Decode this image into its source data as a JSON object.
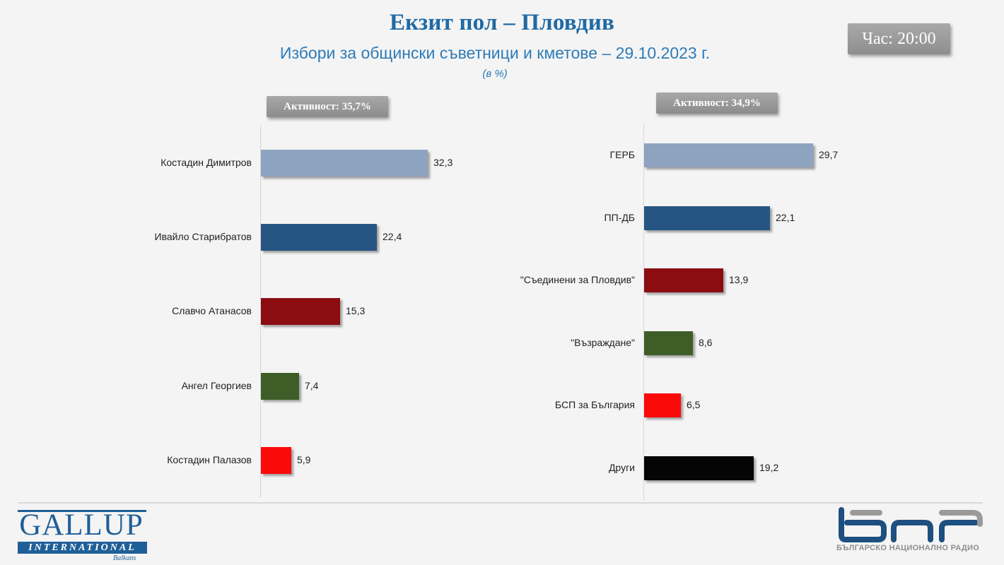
{
  "header": {
    "title": "Екзит пол – Пловдив",
    "subtitle": "Избори за общински съветници и кметове – 29.10.2023 г.",
    "unit": "(в %)",
    "time_badge": "Час: 20:00"
  },
  "left_chart": {
    "turnout_label": "Активност: 35,7%"
  },
  "right_chart": {
    "turnout_label": "Активност: 34,9%"
  },
  "footer": {
    "gallup": {
      "word": "GALLUP",
      "international": "INTERNATIONAL",
      "balkans": "Balkans"
    },
    "bnr": {
      "caption": "БЪЛГАРСКО НАЦИОНАЛНО РАДИО"
    }
  },
  "colors": {
    "title": "#1f6aa5",
    "subtitle": "#2d7bb8",
    "light_blue": "#8ea3bf",
    "dark_blue": "#275583",
    "dark_red": "#8b0d12",
    "green": "#3f5e27",
    "red": "#fb0a0a",
    "black": "#050505",
    "bnr_blue": "#1d4f80",
    "bnr_gray": "#9a9a9a"
  },
  "chart_data": [
    {
      "type": "bar",
      "orientation": "horizontal",
      "title": "Избори за кмет – Пловдив (Активност: 35,7%)",
      "categories": [
        "Костадин Димитров",
        "Ивайло Старибратов",
        "Славчо Атанасов",
        "Ангел Георгиев",
        "Костадин Палазов"
      ],
      "values": [
        32.3,
        22.4,
        15.3,
        7.4,
        5.9
      ],
      "value_labels": [
        "32,3",
        "22,4",
        "15,3",
        "7,4",
        "5,9"
      ],
      "bar_colors": [
        "#8ea3bf",
        "#275583",
        "#8b0d12",
        "#3f5e27",
        "#fb0a0a"
      ],
      "xlabel": "",
      "ylabel": "",
      "unit": "%",
      "grid": false,
      "legend": false
    },
    {
      "type": "bar",
      "orientation": "horizontal",
      "title": "Избори за общински съветници – Пловдив (Активност: 34,9%)",
      "categories": [
        "ГЕРБ",
        "ПП-ДБ",
        "\"Съединени за Пловдив\"",
        "\"Възраждане\"",
        "БСП за България",
        "Други"
      ],
      "values": [
        29.7,
        22.1,
        13.9,
        8.6,
        6.5,
        19.2
      ],
      "value_labels": [
        "29,7",
        "22,1",
        "13,9",
        "8,6",
        "6,5",
        "19,2"
      ],
      "bar_colors": [
        "#8ea3bf",
        "#275583",
        "#8b0d12",
        "#3f5e27",
        "#fb0a0a",
        "#050505"
      ],
      "xlabel": "",
      "ylabel": "",
      "unit": "%",
      "grid": false,
      "legend": false
    }
  ]
}
